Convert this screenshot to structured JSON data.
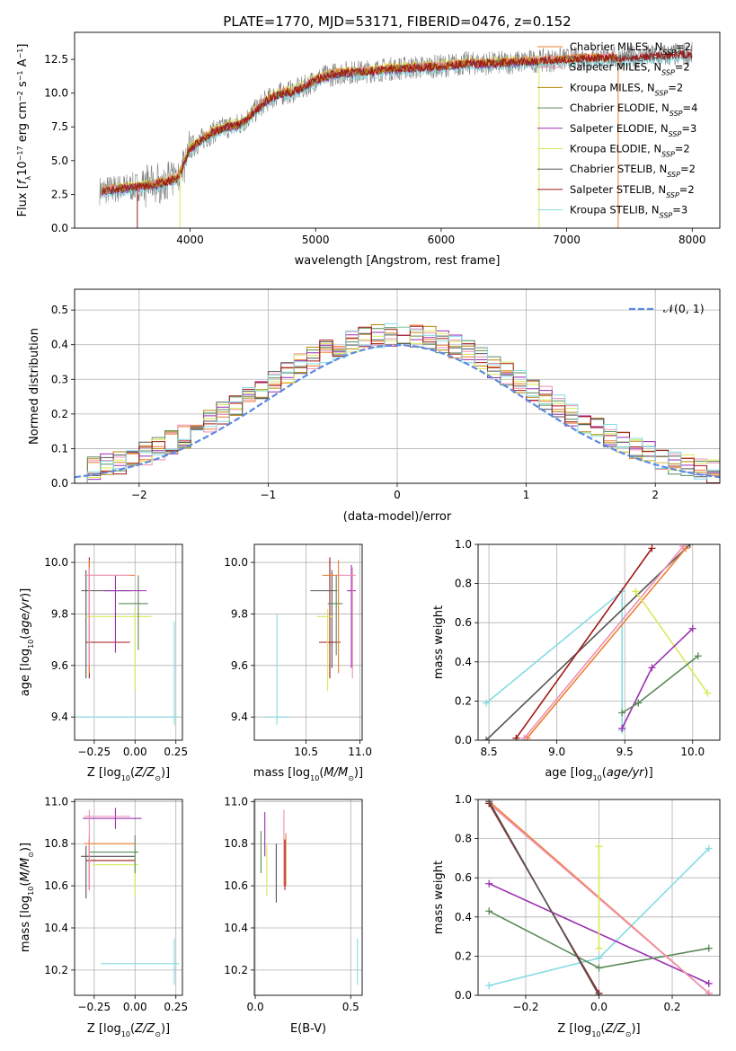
{
  "figure": {
    "title": "PLATE=1770, MJD=53171, FIBERID=0476, z=0.152"
  },
  "colors": {
    "Chabrier MILES": "#ef7f2f",
    "Salpeter MILES": "#ef8fb5",
    "Kroupa MILES": "#b8860b",
    "Chabrier ELODIE": "#5a8a5a",
    "Salpeter ELODIE": "#9a2fb0",
    "Kroupa ELODIE": "#d9e85a",
    "Chabrier STELIB": "#555555",
    "Salpeter STELIB": "#a01818",
    "Kroupa STELIB": "#86dbe3",
    "data": "#808080",
    "normal": "#5b8ae0",
    "grid": "#b0b0b0"
  },
  "chart_data": [
    {
      "id": "spectrum",
      "type": "line",
      "xlabel": "wavelength [Angstrom, rest frame]",
      "ylabel": "Flux [f_λ10^-17 erg cm^-2 s^-1 A^-1]",
      "xlim": [
        3080,
        8220
      ],
      "ylim": [
        0,
        14.5
      ],
      "xticks": [
        4000,
        5000,
        6000,
        7000,
        8000
      ],
      "yticks": [
        0.0,
        2.5,
        5.0,
        7.5,
        10.0,
        12.5
      ],
      "ytick_labels": [
        "0.0",
        "2.5",
        "5.0",
        "7.5",
        "10.0",
        "12.5"
      ],
      "legend": [
        {
          "label": "Chabrier MILES, N_SSP=2"
        },
        {
          "label": "Salpeter MILES, N_SSP=2"
        },
        {
          "label": "Kroupa MILES, N_SSP=2"
        },
        {
          "label": "Chabrier ELODIE, N_SSP=4"
        },
        {
          "label": "Salpeter ELODIE, N_SSP=3"
        },
        {
          "label": "Kroupa ELODIE, N_SSP=2"
        },
        {
          "label": "Chabrier STELIB, N_SSP=2"
        },
        {
          "label": "Salpeter STELIB, N_SSP=2"
        },
        {
          "label": "Kroupa STELIB, N_SSP=3"
        }
      ],
      "model_continuum": {
        "x": [
          3300,
          3500,
          3600,
          3700,
          3800,
          3900,
          4000,
          4100,
          4200,
          4300,
          4400,
          4500,
          4600,
          4700,
          4800,
          4900,
          5000,
          5100,
          5200,
          5400,
          5600,
          5800,
          6000,
          6200,
          6400,
          6600,
          6800,
          7000,
          7200,
          7400,
          7600,
          7800,
          8000
        ],
        "y": [
          2.8,
          3.0,
          3.1,
          3.2,
          3.4,
          3.7,
          5.9,
          6.6,
          7.2,
          7.5,
          7.7,
          8.5,
          9.4,
          9.9,
          10.1,
          10.4,
          11.0,
          11.3,
          11.5,
          11.6,
          11.8,
          11.9,
          12.0,
          12.2,
          12.2,
          12.3,
          12.4,
          12.5,
          12.6,
          12.6,
          12.7,
          12.8,
          12.9
        ]
      }
    },
    {
      "id": "residuals",
      "type": "step-histogram",
      "xlabel": "(data-model)/error",
      "ylabel": "Normed distribution",
      "xlim": [
        -2.5,
        2.5
      ],
      "ylim": [
        0,
        0.56
      ],
      "xticks": [
        -2,
        -1,
        0,
        1,
        2
      ],
      "xtick_labels": [
        "−2",
        "−1",
        "0",
        "1",
        "2"
      ],
      "yticks": [
        0.0,
        0.1,
        0.2,
        0.3,
        0.4,
        0.5
      ],
      "ytick_labels": [
        "0.0",
        "0.1",
        "0.2",
        "0.3",
        "0.4",
        "0.5"
      ],
      "legend": [
        {
          "label": "𝒩(0, 1)"
        }
      ],
      "bin_width": 0.1,
      "bin_start": -2.5
    },
    {
      "id": "age_vs_Z",
      "type": "errorbar",
      "xlabel": "Z [log10(Z/Z⊙)]",
      "ylabel": "age [log10(age/yr)]",
      "xlim": [
        -0.37,
        0.29
      ],
      "ylim": [
        9.31,
        10.07
      ],
      "xticks": [
        -0.25,
        0.0,
        0.25
      ],
      "xtick_labels": [
        "−0.25",
        "0.00",
        "0.25"
      ],
      "yticks": [
        9.4,
        9.6,
        9.8,
        10.0
      ],
      "ytick_labels": [
        "9.4",
        "9.6",
        "9.8",
        "10.0"
      ],
      "points": [
        {
          "model": "Kroupa STELIB",
          "x": 0.24,
          "y": 9.4,
          "xerr": [
            0.6,
            0.03
          ],
          "yerr": [
            0.03,
            0.37
          ]
        },
        {
          "model": "Salpeter STELIB",
          "x": -0.28,
          "y": 9.69,
          "xerr": [
            0.02,
            0.25
          ],
          "yerr": [
            0.14,
            0.33
          ]
        },
        {
          "model": "Chabrier STELIB",
          "x": -0.3,
          "y": 9.89,
          "xerr": [
            0.03,
            0.28
          ],
          "yerr": [
            0.34,
            0.08
          ]
        },
        {
          "model": "Kroupa ELODIE",
          "x": 0.0,
          "y": 9.79,
          "xerr": [
            0.3,
            0.1
          ],
          "yerr": [
            0.29,
            0.03
          ]
        },
        {
          "model": "Chabrier ELODIE",
          "x": 0.02,
          "y": 9.84,
          "xerr": [
            0.12,
            0.06
          ],
          "yerr": [
            0.18,
            0.11
          ]
        },
        {
          "model": "Salpeter ELODIE",
          "x": -0.12,
          "y": 9.89,
          "xerr": [
            0.07,
            0.19
          ],
          "yerr": [
            0.24,
            0.06
          ]
        },
        {
          "model": "Chabrier MILES",
          "x": -0.28,
          "y": 9.95,
          "xerr": [
            0.03,
            0.28
          ],
          "yerr": [
            0.38,
            0.06
          ]
        },
        {
          "model": "Salpeter MILES",
          "x": -0.28,
          "y": 9.95,
          "xerr": [
            0.03,
            0.25
          ],
          "yerr": [
            0.35,
            0.03
          ]
        }
      ]
    },
    {
      "id": "age_vs_mass",
      "type": "errorbar",
      "xlabel": "mass [log10(M/M⊙)]",
      "xlim": [
        10.02,
        11.02
      ],
      "ylim": [
        9.31,
        10.07
      ],
      "xticks": [
        10.5,
        11.0
      ],
      "xtick_labels": [
        "10.5",
        "11.0"
      ],
      "yticks": [
        9.4,
        9.6,
        9.8,
        10.0
      ],
      "ytick_labels": [
        "9.4",
        "9.6",
        "9.8",
        "10.0"
      ],
      "points": [
        {
          "model": "Kroupa STELIB",
          "x": 10.23,
          "y": 9.4,
          "xerr": [
            0.1,
            0.12
          ],
          "yerr": [
            0.03,
            0.4
          ]
        },
        {
          "model": "Salpeter STELIB",
          "x": 10.72,
          "y": 9.69,
          "xerr": [
            0.1,
            0.1
          ],
          "yerr": [
            0.14,
            0.33
          ]
        },
        {
          "model": "Chabrier STELIB",
          "x": 10.74,
          "y": 9.89,
          "xerr": [
            0.2,
            0.05
          ],
          "yerr": [
            0.3,
            0.08
          ]
        },
        {
          "model": "Kroupa ELODIE",
          "x": 10.7,
          "y": 9.79,
          "xerr": [
            0.1,
            0.05
          ],
          "yerr": [
            0.29,
            0.03
          ]
        },
        {
          "model": "Chabrier ELODIE",
          "x": 10.78,
          "y": 9.84,
          "xerr": [
            0.08,
            0.06
          ],
          "yerr": [
            0.2,
            0.11
          ]
        },
        {
          "model": "Salpeter ELODIE",
          "x": 10.92,
          "y": 9.89,
          "xerr": [
            0.04,
            0.04
          ],
          "yerr": [
            0.3,
            0.1
          ]
        },
        {
          "model": "Chabrier MILES",
          "x": 10.8,
          "y": 9.95,
          "xerr": [
            0.15,
            0.05
          ],
          "yerr": [
            0.38,
            0.06
          ]
        },
        {
          "model": "Salpeter MILES",
          "x": 10.93,
          "y": 9.95,
          "xerr": [
            0.14,
            0.03
          ],
          "yerr": [
            0.4,
            0.03
          ]
        }
      ]
    },
    {
      "id": "weight_vs_age",
      "type": "line",
      "xlabel": "age [log10(age/yr)]",
      "ylabel": "mass weight",
      "xlim": [
        8.42,
        10.2
      ],
      "ylim": [
        0,
        1
      ],
      "xticks": [
        8.5,
        9.0,
        9.5,
        10.0
      ],
      "xtick_labels": [
        "8.5",
        "9.0",
        "9.5",
        "10.0"
      ],
      "yticks": [
        0.0,
        0.2,
        0.4,
        0.6,
        0.8,
        1.0
      ],
      "ytick_labels": [
        "0.0",
        "0.2",
        "0.4",
        "0.6",
        "0.8",
        "1.0"
      ],
      "series": [
        {
          "model": "Kroupa STELIB",
          "x": [
            8.48,
            9.48,
            9.48
          ],
          "y": [
            0.19,
            0.76,
            0.05
          ]
        },
        {
          "model": "Chabrier STELIB",
          "x": [
            8.48,
            9.98
          ],
          "y": [
            0.0,
            1.0
          ]
        },
        {
          "model": "Salpeter STELIB",
          "x": [
            8.7,
            9.7
          ],
          "y": [
            0.01,
            0.98
          ]
        },
        {
          "model": "Chabrier MILES",
          "x": [
            8.78,
            9.95
          ],
          "y": [
            0.01,
            0.98
          ]
        },
        {
          "model": "Salpeter MILES",
          "x": [
            8.76,
            9.93
          ],
          "y": [
            0.01,
            0.99
          ]
        },
        {
          "model": "Kroupa ELODIE",
          "x": [
            9.58,
            10.11
          ],
          "y": [
            0.76,
            0.24
          ]
        },
        {
          "model": "Salpeter ELODIE",
          "x": [
            9.48,
            9.7,
            10.0
          ],
          "y": [
            0.06,
            0.37,
            0.57
          ]
        },
        {
          "model": "Chabrier ELODIE",
          "x": [
            9.48,
            9.6,
            10.04
          ],
          "y": [
            0.14,
            0.19,
            0.43
          ]
        }
      ]
    },
    {
      "id": "mass_vs_Z",
      "type": "errorbar",
      "xlabel": "Z [log10(Z/Z⊙)]",
      "ylabel": "mass [log10(M/M⊙)]",
      "xlim": [
        -0.37,
        0.29
      ],
      "ylim": [
        10.08,
        11.01
      ],
      "xticks": [
        -0.25,
        0.0,
        0.25
      ],
      "xtick_labels": [
        "−0.25",
        "0.00",
        "0.25"
      ],
      "yticks": [
        10.2,
        10.4,
        10.6,
        10.8,
        11.0
      ],
      "ytick_labels": [
        "10.2",
        "10.4",
        "10.6",
        "10.8",
        "11.0"
      ],
      "points": [
        {
          "model": "Kroupa STELIB",
          "x": 0.24,
          "y": 10.23,
          "xerr": [
            0.45,
            0.03
          ],
          "yerr": [
            0.1,
            0.12
          ]
        },
        {
          "model": "Salpeter STELIB",
          "x": -0.28,
          "y": 10.72,
          "xerr": [
            0.02,
            0.28
          ],
          "yerr": [
            0.14,
            0.1
          ]
        },
        {
          "model": "Chabrier STELIB",
          "x": -0.3,
          "y": 10.74,
          "xerr": [
            0.03,
            0.3
          ],
          "yerr": [
            0.2,
            0.05
          ]
        },
        {
          "model": "Kroupa ELODIE",
          "x": 0.0,
          "y": 10.7,
          "xerr": [
            0.26,
            0.02
          ],
          "yerr": [
            0.15,
            0.08
          ]
        },
        {
          "model": "Chabrier ELODIE",
          "x": 0.0,
          "y": 10.76,
          "xerr": [
            0.28,
            0.02
          ],
          "yerr": [
            0.1,
            0.08
          ]
        },
        {
          "model": "Salpeter ELODIE",
          "x": -0.12,
          "y": 10.92,
          "xerr": [
            0.2,
            0.16
          ],
          "yerr": [
            0.05,
            0.05
          ]
        },
        {
          "model": "Chabrier MILES",
          "x": -0.28,
          "y": 10.8,
          "xerr": [
            0.03,
            0.28
          ],
          "yerr": [
            0.2,
            0.04
          ]
        },
        {
          "model": "Salpeter MILES",
          "x": -0.28,
          "y": 10.93,
          "xerr": [
            0.03,
            0.25
          ],
          "yerr": [
            0.35,
            0.03
          ]
        }
      ]
    },
    {
      "id": "mass_vs_EBV",
      "type": "errorbar",
      "xlabel": "E(B-V)",
      "xlim": [
        -0.005,
        0.56
      ],
      "ylim": [
        10.08,
        11.01
      ],
      "xticks": [
        0.0,
        0.5
      ],
      "xtick_labels": [
        "0.0",
        "0.5"
      ],
      "yticks": [
        10.2,
        10.4,
        10.6,
        10.8,
        11.0
      ],
      "ytick_labels": [
        "10.2",
        "10.4",
        "10.6",
        "10.8",
        "11.0"
      ],
      "points": [
        {
          "model": "Kroupa STELIB",
          "x": 0.535,
          "y": 10.23,
          "yerr": [
            0.1,
            0.12
          ]
        },
        {
          "model": "Chabrier ELODIE",
          "x": 0.03,
          "y": 10.76,
          "yerr": [
            0.1,
            0.1
          ]
        },
        {
          "model": "Salpeter ELODIE",
          "x": 0.05,
          "y": 10.9,
          "yerr": [
            0.16,
            0.05
          ]
        },
        {
          "model": "Kroupa ELODIE",
          "x": 0.06,
          "y": 10.7,
          "yerr": [
            0.15,
            0.1
          ]
        },
        {
          "model": "Chabrier STELIB",
          "x": 0.11,
          "y": 10.74,
          "yerr": [
            0.22,
            0.06
          ]
        },
        {
          "model": "Salpeter STELIB",
          "x": 0.155,
          "y": 10.72,
          "yerr": [
            0.14,
            0.1
          ]
        },
        {
          "model": "Chabrier MILES",
          "x": 0.16,
          "y": 10.8,
          "yerr": [
            0.2,
            0.05
          ]
        },
        {
          "model": "Salpeter MILES",
          "x": 0.15,
          "y": 10.9,
          "yerr": [
            0.3,
            0.06
          ]
        }
      ]
    },
    {
      "id": "weight_vs_Z",
      "type": "line",
      "xlabel": "Z [log10(Z/Z⊙)]",
      "ylabel": "mass weight",
      "xlim": [
        -0.33,
        0.33
      ],
      "ylim": [
        0,
        1
      ],
      "xticks": [
        -0.2,
        0.0,
        0.2
      ],
      "xtick_labels": [
        "−0.2",
        "0.0",
        "0.2"
      ],
      "yticks": [
        0.0,
        0.2,
        0.4,
        0.6,
        0.8,
        1.0
      ],
      "ytick_labels": [
        "0.0",
        "0.2",
        "0.4",
        "0.6",
        "0.8",
        "1.0"
      ],
      "series": [
        {
          "model": "Kroupa STELIB",
          "x": [
            -0.3,
            0.0,
            0.3
          ],
          "y": [
            0.05,
            0.19,
            0.75
          ]
        },
        {
          "model": "Salpeter ELODIE",
          "x": [
            -0.3,
            0.3
          ],
          "y": [
            0.57,
            0.06
          ]
        },
        {
          "model": "Chabrier ELODIE",
          "x": [
            -0.3,
            0.0,
            0.3
          ],
          "y": [
            0.43,
            0.14,
            0.24
          ]
        },
        {
          "model": "Chabrier MILES",
          "x": [
            -0.3,
            0.3
          ],
          "y": [
            0.99,
            0.01
          ]
        },
        {
          "model": "Salpeter MILES",
          "x": [
            -0.3,
            0.3
          ],
          "y": [
            0.98,
            0.01
          ]
        },
        {
          "model": "Salpeter STELIB",
          "x": [
            -0.3,
            0.0
          ],
          "y": [
            0.98,
            0.01
          ]
        },
        {
          "model": "Chabrier STELIB",
          "x": [
            -0.3,
            0.0
          ],
          "y": [
            0.99,
            0.0
          ]
        },
        {
          "model": "Kroupa ELODIE",
          "x": [
            0.0,
            0.0
          ],
          "y": [
            0.76,
            0.24
          ]
        }
      ]
    }
  ]
}
